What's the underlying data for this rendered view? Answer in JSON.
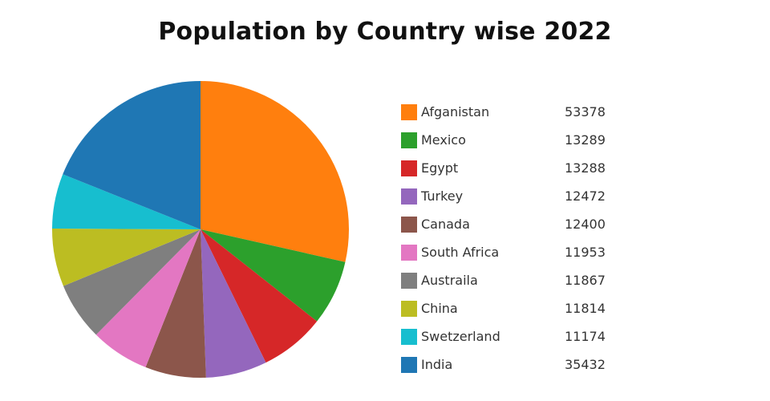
{
  "chart_data": {
    "type": "pie",
    "title": "Population by Country wise 2022",
    "start_angle_deg": 0,
    "direction": "clockwise",
    "legend_position": "right",
    "slices": [
      {
        "label": "Afganistan",
        "value": 53378,
        "color": "#ff7f0e"
      },
      {
        "label": "Mexico",
        "value": 13289,
        "color": "#2ca02c"
      },
      {
        "label": "Egypt",
        "value": 13288,
        "color": "#d62728"
      },
      {
        "label": "Turkey",
        "value": 12472,
        "color": "#9467bd"
      },
      {
        "label": "Canada",
        "value": 12400,
        "color": "#8c564b"
      },
      {
        "label": "South Africa",
        "value": 11953,
        "color": "#e377c2"
      },
      {
        "label": "Austraila",
        "value": 11867,
        "color": "#7f7f7f"
      },
      {
        "label": "China",
        "value": 11814,
        "color": "#bcbd22"
      },
      {
        "label": "Swetzerland",
        "value": 11174,
        "color": "#17becf"
      },
      {
        "label": "India",
        "value": 35432,
        "color": "#1f77b4"
      }
    ]
  }
}
